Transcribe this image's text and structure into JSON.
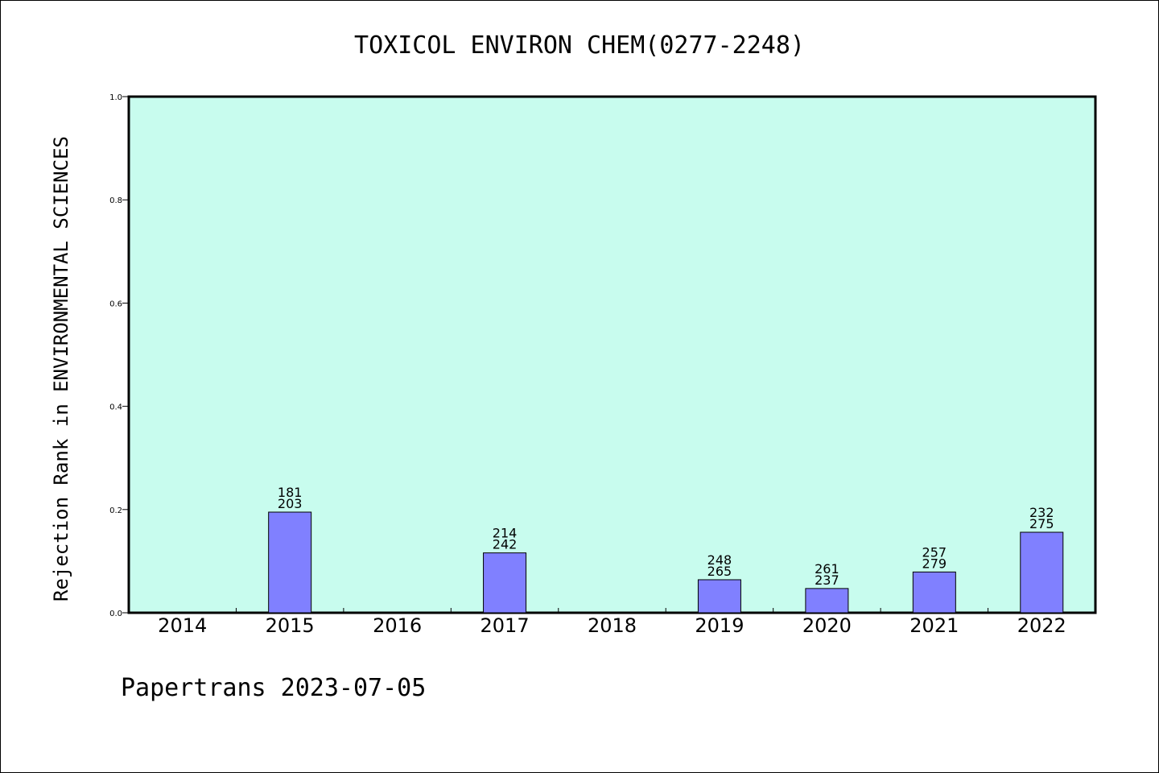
{
  "chart_data": {
    "type": "bar",
    "title": "TOXICOL ENVIRON CHEM(0277-2248)",
    "ylabel": "Rejection Rank in ENVIRONMENTAL SCIENCES",
    "xlabel": "",
    "ylim": [
      0,
      1.0
    ],
    "yticks": [
      "0.0",
      "0.2",
      "0.4",
      "0.6",
      "0.8",
      "1.0"
    ],
    "categories": [
      "2014",
      "2015",
      "2016",
      "2017",
      "2018",
      "2019",
      "2020",
      "2021",
      "2022"
    ],
    "values": [
      null,
      0.195,
      null,
      0.116,
      null,
      0.064,
      0.047,
      0.079,
      0.156
    ],
    "labels_top": [
      null,
      "181",
      null,
      "214",
      null,
      "248",
      "261",
      "257",
      "232"
    ],
    "labels_bottom": [
      null,
      "203",
      null,
      "242",
      null,
      "265",
      "237",
      "279",
      "275"
    ],
    "grid": false,
    "colors": {
      "plot_background": "#c8fcee",
      "bar_fill": "#8080ff",
      "bar_stroke": "#000000"
    }
  },
  "footer": "Papertrans 2023-07-05"
}
